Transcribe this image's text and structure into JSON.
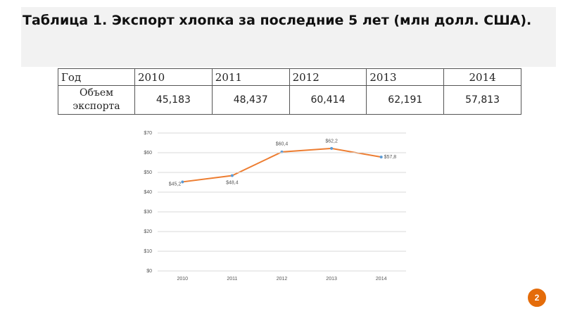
{
  "header": {
    "title": "Таблица 1. Экспорт хлопка за последние 5 лет (млн долл. США)."
  },
  "table": {
    "header": [
      "Год",
      "2010",
      "2011",
      "2012",
      "2013",
      "2014"
    ],
    "rows": [
      [
        "Объем экспорта",
        "45,183",
        "48,437",
        "60,414",
        "62,191",
        "57,813"
      ]
    ]
  },
  "chart_data": {
    "type": "line",
    "categories": [
      "2010",
      "2011",
      "2012",
      "2013",
      "2014"
    ],
    "series": [
      {
        "color": "#ed7d31",
        "marker_color": "#5b9bd5",
        "values": [
          45.2,
          48.4,
          60.4,
          62.2,
          57.8
        ],
        "value_labels": [
          "$45,2",
          "$48,4",
          "$60,4",
          "$62,2",
          "$57,8"
        ]
      }
    ],
    "ylim": [
      0,
      70
    ],
    "yticks": [
      {
        "value": 0,
        "label": "$0"
      },
      {
        "value": 10,
        "label": "$10"
      },
      {
        "value": 20,
        "label": "$20"
      },
      {
        "value": 30,
        "label": "$30"
      },
      {
        "value": 40,
        "label": "$40"
      },
      {
        "value": 50,
        "label": "$50"
      },
      {
        "value": 60,
        "label": "$60"
      },
      {
        "value": 70,
        "label": "$70"
      }
    ],
    "grid": true
  },
  "page_number": "2"
}
